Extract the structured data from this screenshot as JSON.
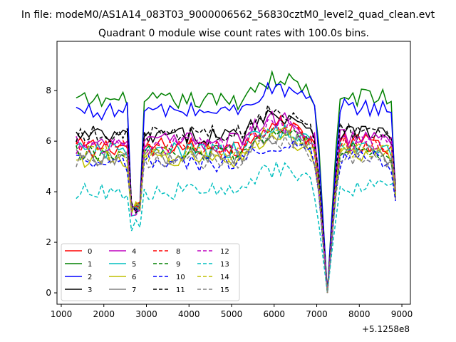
{
  "figure": {
    "suptitle": "In file: modeM0/AS1A14_083T03_9000006562_56830cztM0_level2_quad_clean.evt",
    "title": "Quadrant 0 module wise count rates with 100.0s bins.",
    "offset_label": "+5.1258e8"
  },
  "chart_data": {
    "type": "line",
    "title": "Quadrant 0 module wise count rates with 100.0s bins.",
    "xlabel": "",
    "ylabel": "",
    "x_offset": 512580000,
    "xlim": [
      900,
      9200
    ],
    "ylim": [
      -0.45,
      9.95
    ],
    "xticks": [
      1000,
      2000,
      3000,
      4000,
      5000,
      6000,
      7000,
      8000,
      9000
    ],
    "yticks": [
      0,
      2,
      4,
      6,
      8
    ],
    "grid": false,
    "legend_position": "lower-left",
    "legend_columns": 4,
    "x": [
      1350,
      8850
    ],
    "series": [
      {
        "name": "0",
        "color": "#ff0000",
        "dashed": false,
        "base": 5.8
      },
      {
        "name": "1",
        "color": "#008000",
        "dashed": false,
        "base": 7.6
      },
      {
        "name": "2",
        "color": "#0000ff",
        "dashed": false,
        "base": 7.2
      },
      {
        "name": "3",
        "color": "#000000",
        "dashed": false,
        "base": 6.2
      },
      {
        "name": "4",
        "color": "#bf00bf",
        "dashed": false,
        "base": 6.0
      },
      {
        "name": "5",
        "color": "#00bfbf",
        "dashed": false,
        "base": 5.6
      },
      {
        "name": "6",
        "color": "#bfbf00",
        "dashed": false,
        "base": 5.3
      },
      {
        "name": "7",
        "color": "#808080",
        "dashed": false,
        "base": 5.4
      },
      {
        "name": "8",
        "color": "#ff0000",
        "dashed": true,
        "base": 5.7
      },
      {
        "name": "9",
        "color": "#008000",
        "dashed": true,
        "base": 5.5
      },
      {
        "name": "10",
        "color": "#0000ff",
        "dashed": true,
        "base": 5.1
      },
      {
        "name": "11",
        "color": "#000000",
        "dashed": true,
        "base": 6.3
      },
      {
        "name": "12",
        "color": "#bf00bf",
        "dashed": true,
        "base": 5.8
      },
      {
        "name": "13",
        "color": "#00bfbf",
        "dashed": true,
        "base": 4.0
      },
      {
        "name": "14",
        "color": "#bfbf00",
        "dashed": true,
        "base": 5.5
      },
      {
        "name": "15",
        "color": "#808080",
        "dashed": true,
        "base": 5.2
      }
    ],
    "dips": [
      {
        "x": 2750,
        "min": 3.0
      },
      {
        "x": 7250,
        "min": 0.0
      }
    ]
  }
}
